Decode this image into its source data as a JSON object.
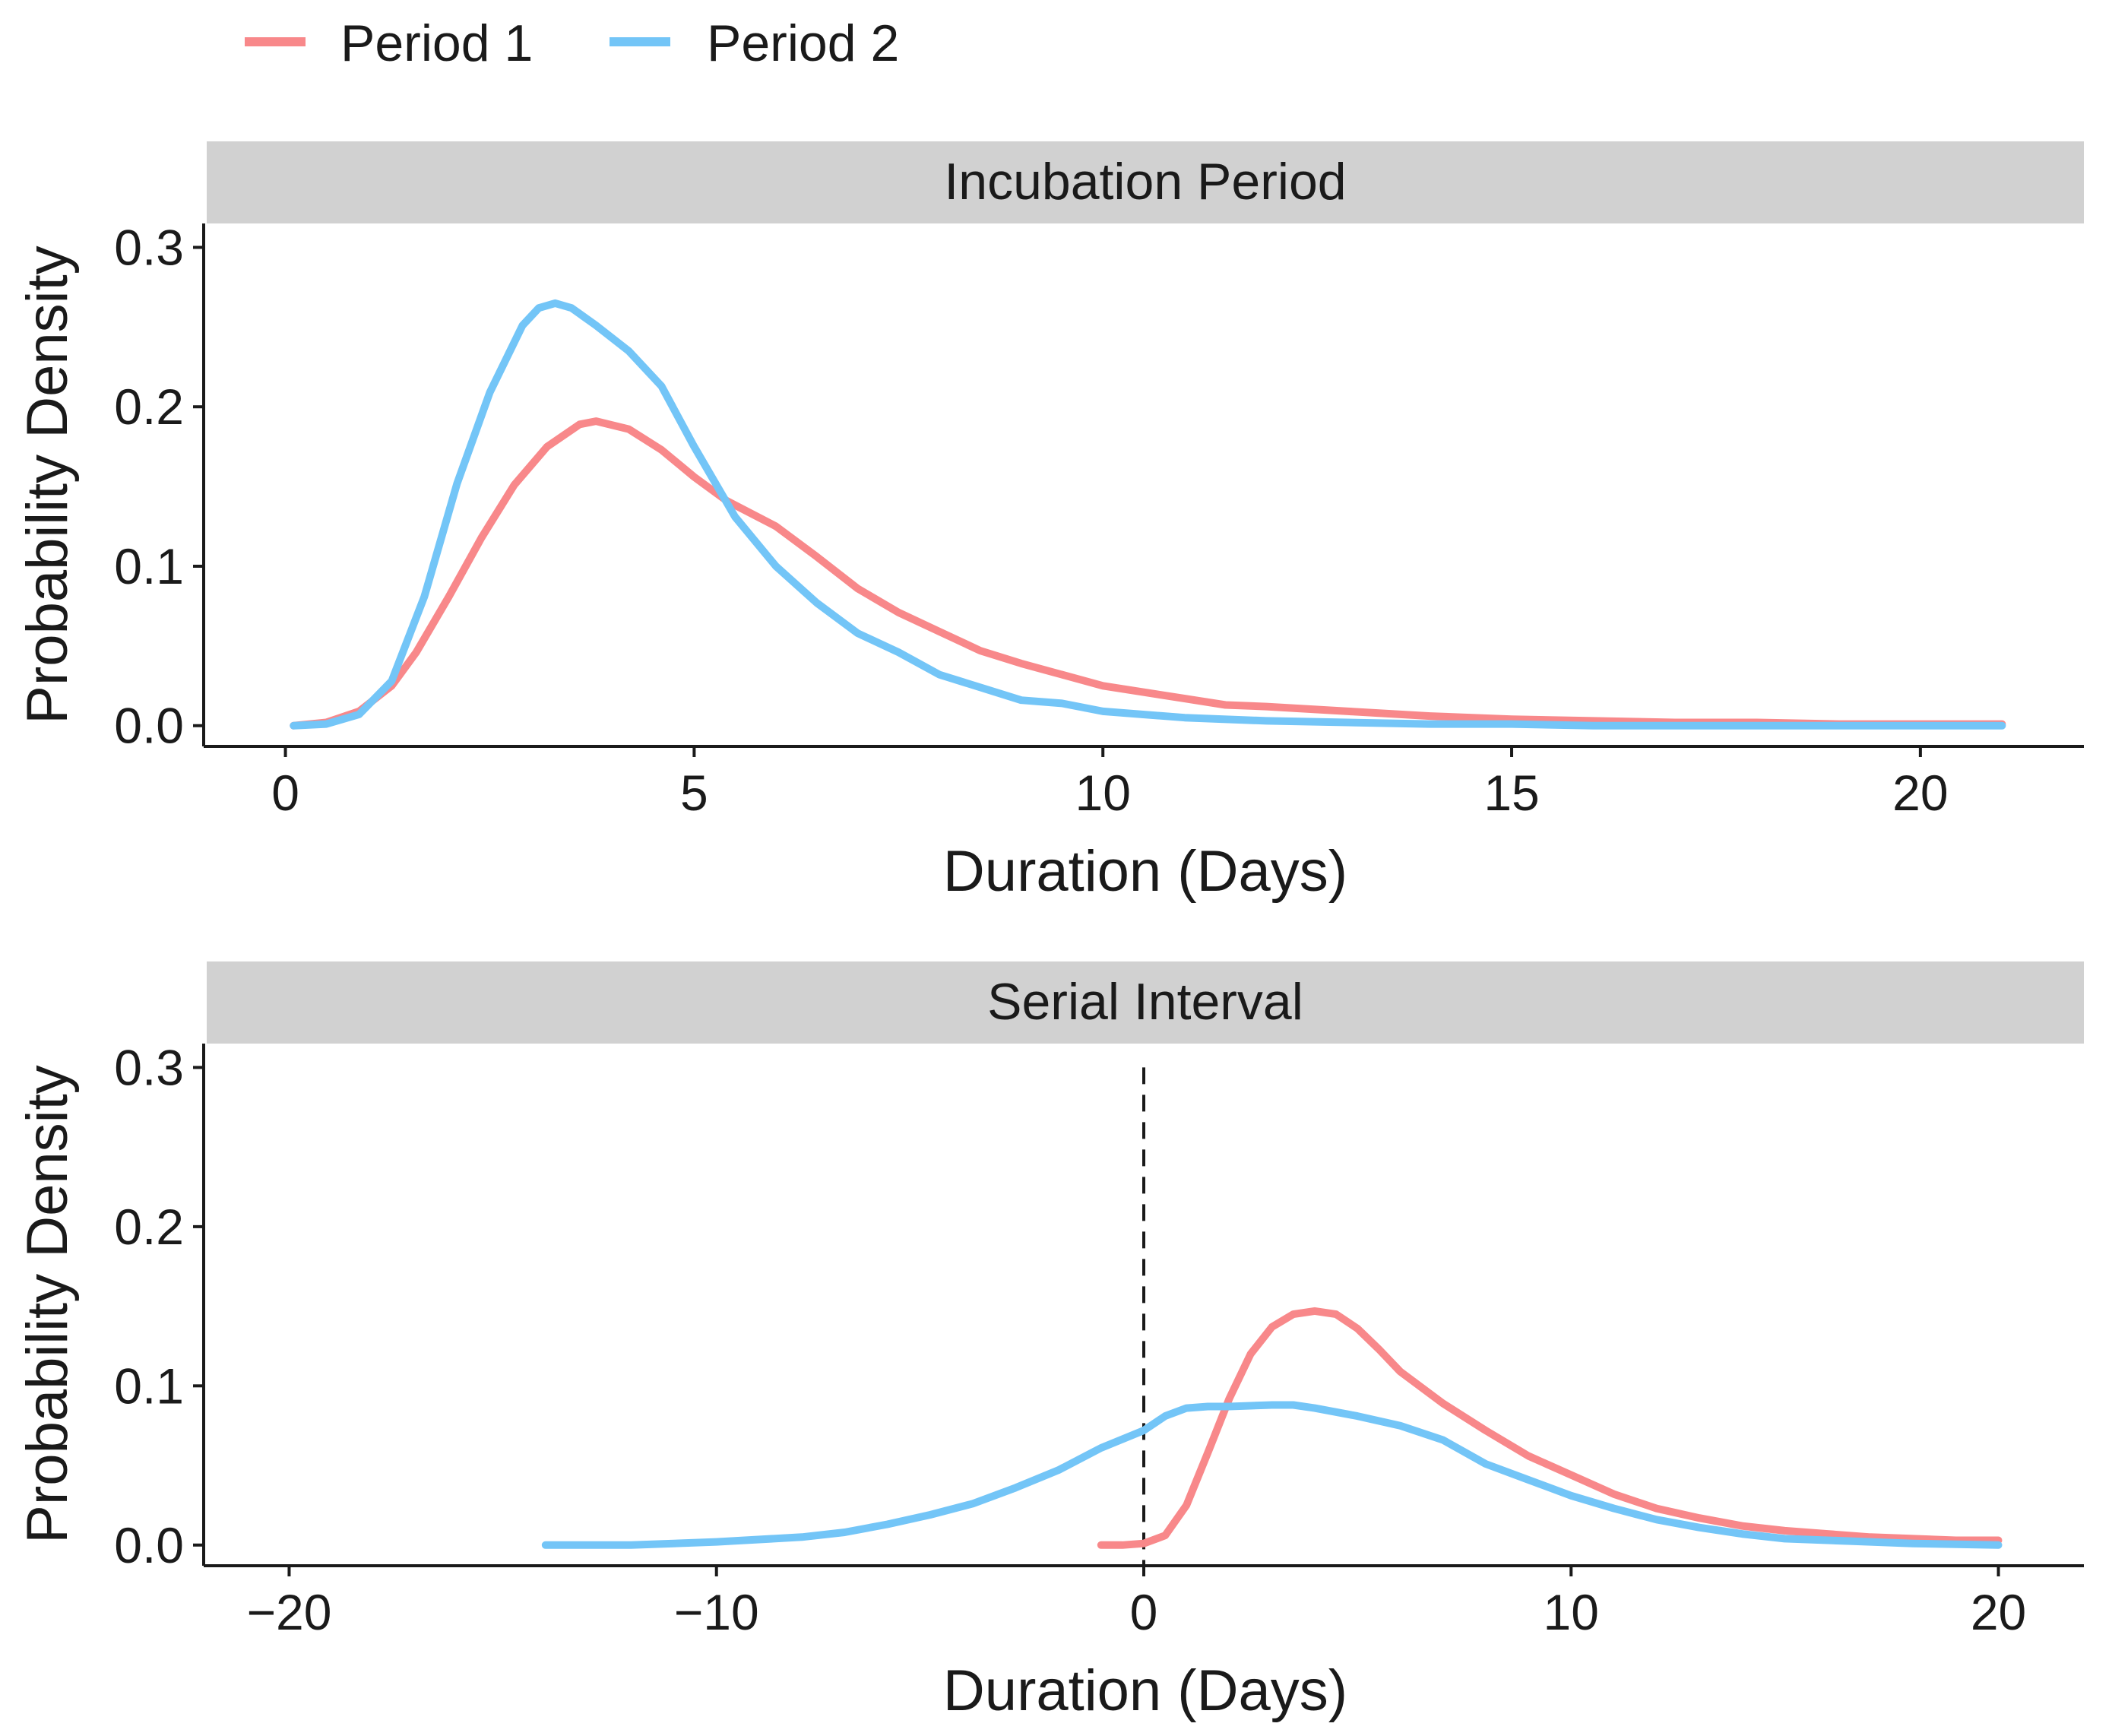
{
  "legend": [
    {
      "label": "Period 1",
      "color": "#F8888A"
    },
    {
      "label": "Period 2",
      "color": "#73C5F7"
    }
  ],
  "chart_data": [
    {
      "type": "line",
      "title": "Incubation Period",
      "xlabel": "Duration (Days)",
      "ylabel": "Probability Density",
      "xlim": [
        -1,
        22
      ],
      "ylim": [
        -0.013,
        0.315
      ],
      "xticks": [
        0,
        5,
        10,
        15,
        20
      ],
      "yticks": [
        0.0,
        0.1,
        0.2,
        0.3
      ],
      "xtick_labels": [
        "0",
        "5",
        "10",
        "15",
        "20"
      ],
      "ytick_labels": [
        "0.0",
        "0.1",
        "0.2",
        "0.3"
      ],
      "vline": null,
      "series": [
        {
          "name": "Period 1",
          "x": [
            0.1,
            0.5,
            0.9,
            1.3,
            1.6,
            2.0,
            2.4,
            2.8,
            3.2,
            3.6,
            3.8,
            4.2,
            4.6,
            5.0,
            5.4,
            6.0,
            6.5,
            7.0,
            7.5,
            8.0,
            8.5,
            9.0,
            9.5,
            10.0,
            10.5,
            11.0,
            11.5,
            12.0,
            13.0,
            14.0,
            15.0,
            16.0,
            17.0,
            18.0,
            19.0,
            20.0,
            21.0
          ],
          "y": [
            0.0,
            0.002,
            0.009,
            0.025,
            0.046,
            0.081,
            0.118,
            0.151,
            0.175,
            0.189,
            0.191,
            0.186,
            0.173,
            0.156,
            0.141,
            0.125,
            0.106,
            0.086,
            0.071,
            0.059,
            0.047,
            0.039,
            0.032,
            0.025,
            0.021,
            0.017,
            0.013,
            0.012,
            0.009,
            0.006,
            0.004,
            0.003,
            0.002,
            0.002,
            0.001,
            0.001,
            0.001
          ]
        },
        {
          "name": "Period 2",
          "x": [
            0.1,
            0.5,
            0.9,
            1.3,
            1.7,
            2.1,
            2.5,
            2.9,
            3.1,
            3.3,
            3.5,
            3.8,
            4.2,
            4.6,
            5.0,
            5.5,
            6.0,
            6.5,
            7.0,
            7.5,
            8.0,
            8.5,
            9.0,
            9.5,
            10.0,
            11.0,
            12.0,
            13.0,
            14.0,
            15.0,
            16.0,
            18.0,
            20.0,
            21.0
          ],
          "y": [
            0.0,
            0.001,
            0.007,
            0.028,
            0.081,
            0.152,
            0.209,
            0.251,
            0.262,
            0.265,
            0.262,
            0.251,
            0.235,
            0.213,
            0.175,
            0.131,
            0.1,
            0.077,
            0.058,
            0.046,
            0.032,
            0.024,
            0.016,
            0.014,
            0.009,
            0.005,
            0.003,
            0.002,
            0.001,
            0.001,
            0.0,
            0.0,
            0.0,
            0.0
          ]
        }
      ]
    },
    {
      "type": "line",
      "title": "Serial Interval",
      "xlabel": "Duration (Days)",
      "ylabel": "Probability Density",
      "xlim": [
        -22,
        22
      ],
      "ylim": [
        -0.013,
        0.315
      ],
      "xticks": [
        -20,
        -10,
        0,
        10,
        20
      ],
      "yticks": [
        0.0,
        0.1,
        0.2,
        0.3
      ],
      "xtick_labels": [
        "−20",
        "−10",
        "0",
        "10",
        "20"
      ],
      "ytick_labels": [
        "0.0",
        "0.1",
        "0.2",
        "0.3"
      ],
      "vline": 0,
      "series": [
        {
          "name": "Period 1",
          "x": [
            -1.0,
            -0.5,
            0.0,
            0.5,
            1.0,
            1.5,
            2.0,
            2.5,
            3.0,
            3.5,
            4.0,
            4.5,
            5.0,
            5.5,
            6.0,
            7.0,
            8.0,
            9.0,
            10.0,
            11.0,
            12.0,
            13.0,
            14.0,
            15.0,
            16.0,
            17.0,
            18.0,
            19.0,
            20.0
          ],
          "y": [
            0.0,
            0.0,
            0.001,
            0.006,
            0.025,
            0.058,
            0.092,
            0.12,
            0.137,
            0.145,
            0.147,
            0.145,
            0.136,
            0.123,
            0.109,
            0.089,
            0.072,
            0.056,
            0.044,
            0.032,
            0.023,
            0.017,
            0.012,
            0.009,
            0.007,
            0.005,
            0.004,
            0.003,
            0.003
          ]
        },
        {
          "name": "Period 2",
          "x": [
            -14.0,
            -12.0,
            -10.0,
            -8.0,
            -7.0,
            -6.0,
            -5.0,
            -4.0,
            -3.0,
            -2.0,
            -1.0,
            0.0,
            0.5,
            1.0,
            1.5,
            2.0,
            3.0,
            3.5,
            4.0,
            5.0,
            6.0,
            7.0,
            8.0,
            9.0,
            10.0,
            11.0,
            12.0,
            13.0,
            14.0,
            15.0,
            16.0,
            18.0,
            20.0
          ],
          "y": [
            0.0,
            0.0,
            0.002,
            0.005,
            0.008,
            0.013,
            0.019,
            0.026,
            0.036,
            0.047,
            0.061,
            0.072,
            0.081,
            0.086,
            0.087,
            0.087,
            0.088,
            0.088,
            0.086,
            0.081,
            0.075,
            0.066,
            0.051,
            0.041,
            0.031,
            0.023,
            0.016,
            0.011,
            0.007,
            0.004,
            0.003,
            0.001,
            0.0
          ]
        }
      ]
    }
  ]
}
